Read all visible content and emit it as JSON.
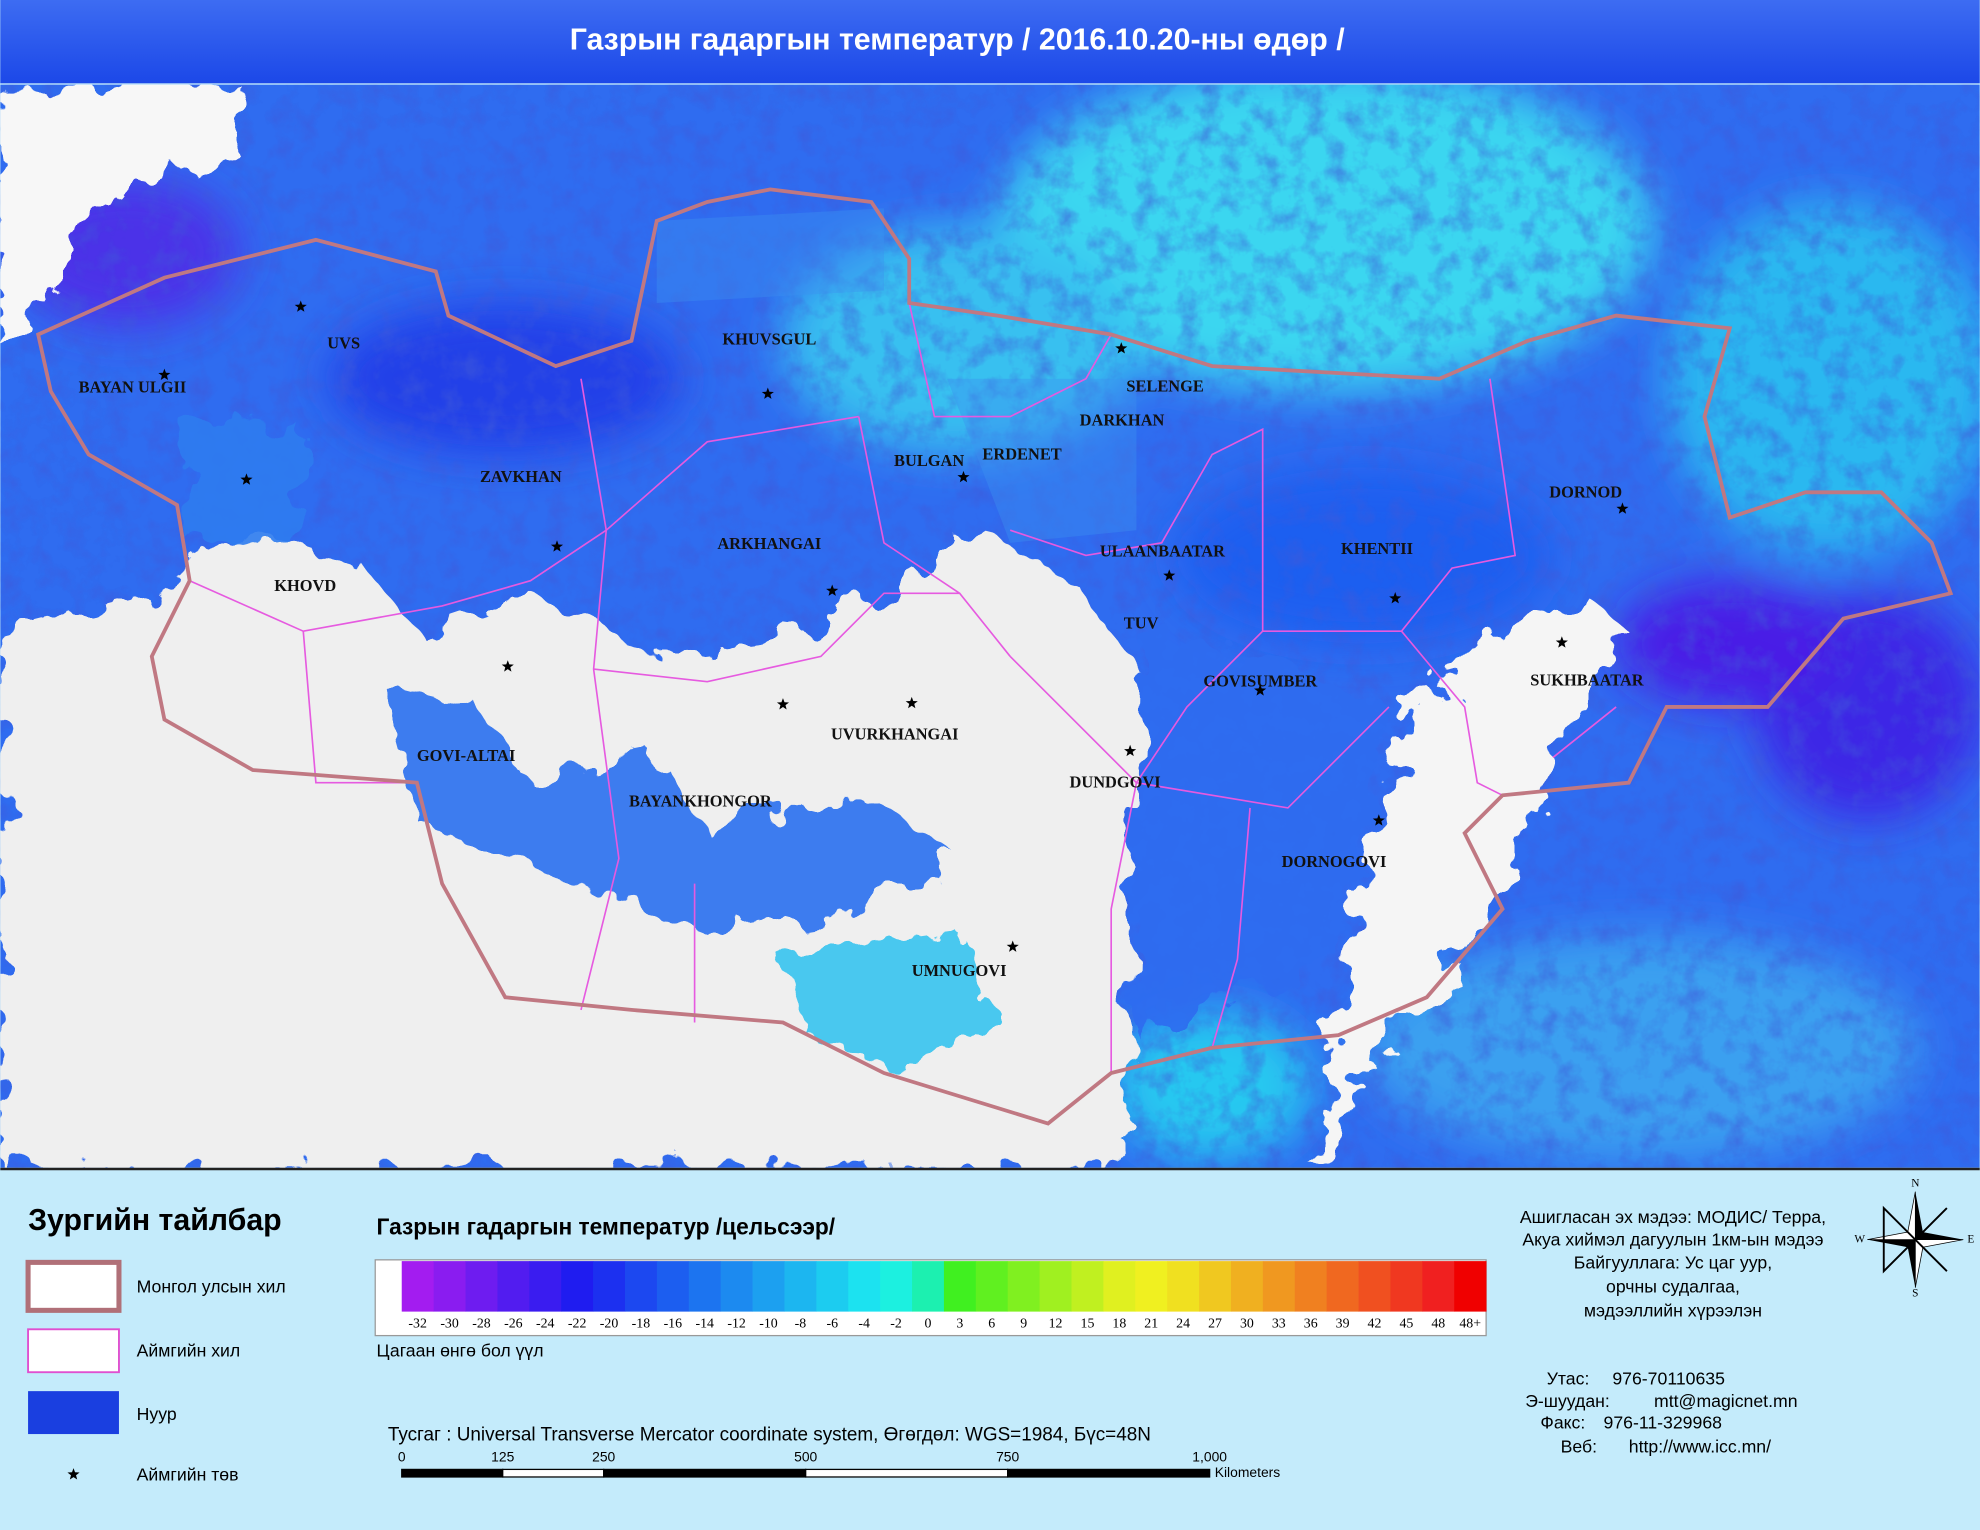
{
  "header": {
    "title": "Газрын гадаргын температур / 2016.10.20-ны өдөр /"
  },
  "map": {
    "labels": [
      "BAYAN ULGII",
      "UVS",
      "KHUVSGUL",
      "SELENGE",
      "DARKHAN",
      "ERDENET",
      "BULGAN",
      "ZAVKHAN",
      "DORNOD",
      "KHOVD",
      "ARKHANGAI",
      "ULAANBAATAR",
      "KHENTII",
      "TUV",
      "SUKHBAATAR",
      "GOVISUMBER",
      "GOVI-ALTAI",
      "UVURKHANGAI",
      "BAYANKHONGOR",
      "DUNDGOVI",
      "DORNOGOVI",
      "UMNUGOVI"
    ]
  },
  "legend": {
    "title": "Зургийн тайлбар",
    "items": [
      "Монгол улсын хил",
      "Аймгийн хил",
      "Нуур",
      "Аймгийн төв"
    ]
  },
  "colorbar": {
    "title": "Газрын гадаргын температур /цельсээр/",
    "cloud_color": "#ffffff",
    "cells": [
      {
        "color": "#a31cf0",
        "label": "-32"
      },
      {
        "color": "#8a1cf0",
        "label": "-30"
      },
      {
        "color": "#6e1cf0",
        "label": "-28"
      },
      {
        "color": "#521cf0",
        "label": "-26"
      },
      {
        "color": "#3a1cf0",
        "label": "-24"
      },
      {
        "color": "#1f1cf0",
        "label": "-22"
      },
      {
        "color": "#1c30f0",
        "label": "-20"
      },
      {
        "color": "#1c48f0",
        "label": "-18"
      },
      {
        "color": "#1c5ef0",
        "label": "-16"
      },
      {
        "color": "#1c74f0",
        "label": "-14"
      },
      {
        "color": "#1c8af0",
        "label": "-12"
      },
      {
        "color": "#1ca0f0",
        "label": "-10"
      },
      {
        "color": "#1cb6f0",
        "label": "-8"
      },
      {
        "color": "#1cccf0",
        "label": "-6"
      },
      {
        "color": "#1ce2f0",
        "label": "-4"
      },
      {
        "color": "#1cf0e0",
        "label": "-2"
      },
      {
        "color": "#1cf0b0",
        "label": "0"
      },
      {
        "color": "#40f020",
        "label": "3"
      },
      {
        "color": "#60f020",
        "label": "6"
      },
      {
        "color": "#80f020",
        "label": "9"
      },
      {
        "color": "#a0f020",
        "label": "12"
      },
      {
        "color": "#c0f020",
        "label": "15"
      },
      {
        "color": "#e0f020",
        "label": "18"
      },
      {
        "color": "#f0f020",
        "label": "21"
      },
      {
        "color": "#f0e020",
        "label": "24"
      },
      {
        "color": "#f0c820",
        "label": "27"
      },
      {
        "color": "#f0b020",
        "label": "30"
      },
      {
        "color": "#f09820",
        "label": "33"
      },
      {
        "color": "#f08020",
        "label": "36"
      },
      {
        "color": "#f06820",
        "label": "39"
      },
      {
        "color": "#f05020",
        "label": "42"
      },
      {
        "color": "#f03820",
        "label": "45"
      },
      {
        "color": "#f02020",
        "label": "48"
      },
      {
        "color": "#f00000",
        "label": "48+"
      }
    ],
    "cloud_note": "Цагаан өнгө бол үүл"
  },
  "projection": "Тусгаг : Universal Transverse Mercator coordinate system, Өгөгдөл: WGS=1984, Бүс=48N",
  "scale": {
    "labels": [
      "0",
      "125",
      "250",
      "500",
      "750",
      "1,000"
    ],
    "unit": "Kilometers"
  },
  "source": {
    "lines": [
      "Ашигласан эх мэдээ: МОДИС/ Терра,",
      "Акуа хиймэл дагуулын 1км-ын мэдээ",
      "Байгууллага: Ус цаг уур,",
      "орчны судалгаа,",
      "мэдээллийн хүрээлэн"
    ]
  },
  "contact": [
    {
      "label": "Утас:",
      "value": "976-70110635"
    },
    {
      "label": "Э-шуудан:",
      "value": "mtt@magicnet.mn"
    },
    {
      "label": "Факс:",
      "value": "976-11-329968"
    },
    {
      "label": "Веб:",
      "value": "http://www.icc.mn/"
    }
  ],
  "compass": {
    "n": "N",
    "s": "S",
    "e": "E",
    "w": "W"
  }
}
